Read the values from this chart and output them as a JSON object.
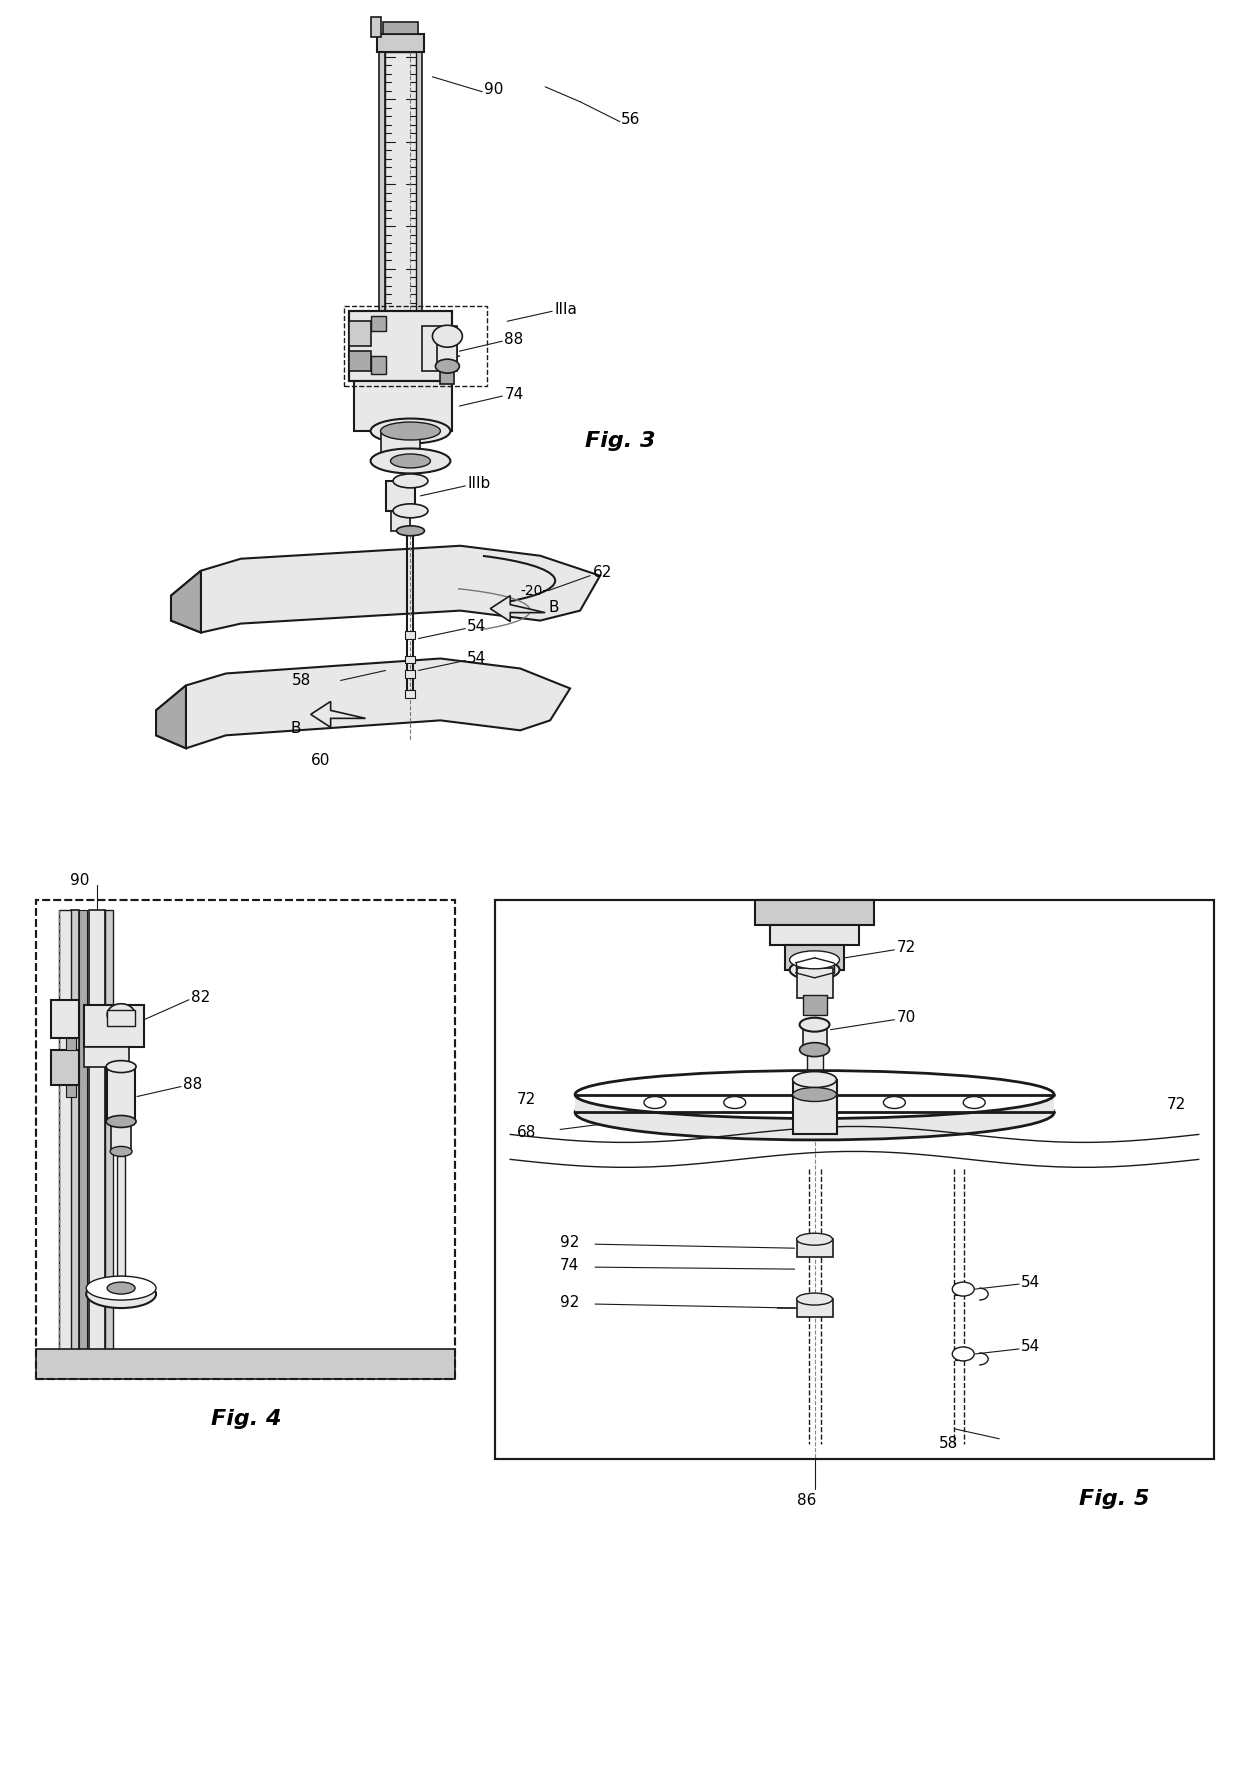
{
  "bg_color": "#ffffff",
  "lc": "#1a1a1a",
  "gray1": "#cccccc",
  "gray2": "#e8e8e8",
  "gray3": "#aaaaaa",
  "gray4": "#888888",
  "fig_width": 12.4,
  "fig_height": 17.67,
  "fig3_title": "Fig. 3",
  "fig4_title": "Fig. 4",
  "fig5_title": "Fig. 5"
}
